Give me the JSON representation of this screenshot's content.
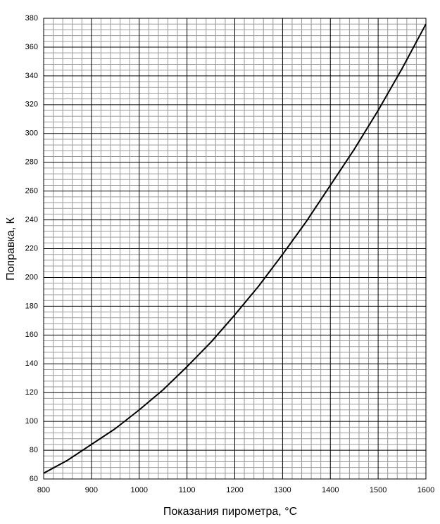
{
  "chart_data": {
    "type": "line",
    "x_label": "Показания пирометра, °C",
    "y_label": "Поправка, К",
    "x": [
      800,
      850,
      900,
      950,
      1000,
      1050,
      1100,
      1150,
      1200,
      1250,
      1300,
      1350,
      1400,
      1450,
      1500,
      1550,
      1600
    ],
    "series": [
      {
        "color": "#000000",
        "values": [
          64,
          73,
          84,
          95,
          108,
          122,
          138,
          155,
          174,
          194,
          216,
          239,
          264,
          289,
          316,
          345,
          376
        ]
      }
    ],
    "xlim": [
      800,
      1600
    ],
    "xticks": [
      800,
      900,
      1000,
      1100,
      1200,
      1300,
      1400,
      1500,
      1600
    ],
    "ylim": [
      60,
      380
    ],
    "yticks": [
      60,
      80,
      100,
      120,
      140,
      160,
      180,
      200,
      220,
      240,
      260,
      280,
      300,
      320,
      340,
      360,
      380
    ],
    "grid": true
  }
}
